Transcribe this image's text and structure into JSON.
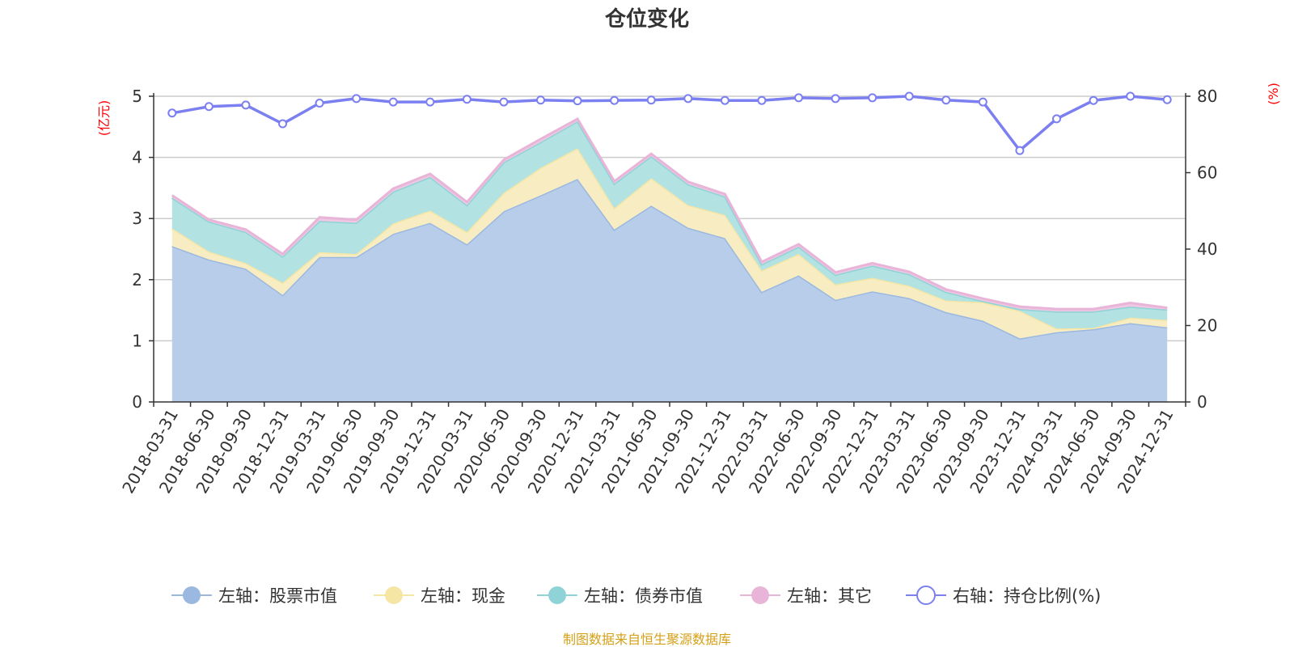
{
  "chart_data": {
    "type": "area",
    "title": "仓位变化",
    "left_axis_unit": "(亿元)",
    "right_axis_unit": "(%)",
    "left_ylim": [
      0,
      5
    ],
    "right_ylim": [
      0,
      80
    ],
    "left_ticks": [
      "0",
      "1",
      "2",
      "3",
      "4",
      "5"
    ],
    "right_ticks": [
      "0",
      "20",
      "40",
      "60",
      "80"
    ],
    "stacked": true,
    "grid": true,
    "legend_position": "bottom",
    "categories": [
      "2018-03-31",
      "2018-06-30",
      "2018-09-30",
      "2018-12-31",
      "2019-03-31",
      "2019-06-30",
      "2019-09-30",
      "2019-12-31",
      "2020-03-31",
      "2020-06-30",
      "2020-09-30",
      "2020-12-31",
      "2021-03-31",
      "2021-06-30",
      "2021-09-30",
      "2021-12-31",
      "2022-03-31",
      "2022-06-30",
      "2022-09-30",
      "2022-12-31",
      "2023-03-31",
      "2023-06-30",
      "2023-09-30",
      "2023-12-31",
      "2024-03-31",
      "2024-06-30",
      "2024-09-30",
      "2024-12-31"
    ],
    "series": [
      {
        "name": "左轴：股票市值",
        "axis": "left",
        "color": "#9bb8e0",
        "fill": "#b8cdea",
        "values": [
          2.55,
          2.33,
          2.18,
          1.75,
          2.37,
          2.37,
          2.75,
          2.93,
          2.58,
          3.12,
          3.38,
          3.65,
          2.82,
          3.21,
          2.85,
          2.68,
          1.8,
          2.07,
          1.67,
          1.81,
          1.7,
          1.47,
          1.33,
          1.04,
          1.14,
          1.19,
          1.29,
          1.22
        ]
      },
      {
        "name": "左轴：现金",
        "axis": "left",
        "color": "#f5e6a6",
        "fill": "#f8edc2",
        "values": [
          0.29,
          0.13,
          0.09,
          0.2,
          0.08,
          0.05,
          0.17,
          0.2,
          0.2,
          0.3,
          0.45,
          0.5,
          0.35,
          0.45,
          0.37,
          0.38,
          0.35,
          0.35,
          0.25,
          0.22,
          0.2,
          0.19,
          0.3,
          0.45,
          0.06,
          0.02,
          0.09,
          0.12
        ]
      },
      {
        "name": "左轴：债券市值",
        "axis": "left",
        "color": "#8fd3d6",
        "fill": "#b3e2e3",
        "values": [
          0.5,
          0.49,
          0.51,
          0.43,
          0.51,
          0.51,
          0.52,
          0.55,
          0.44,
          0.5,
          0.42,
          0.44,
          0.4,
          0.36,
          0.34,
          0.3,
          0.1,
          0.12,
          0.16,
          0.2,
          0.19,
          0.14,
          0.02,
          0.03,
          0.28,
          0.27,
          0.18,
          0.17
        ]
      },
      {
        "name": "左轴：其它",
        "axis": "left",
        "color": "#e8b4d8",
        "fill": "#efc8e3",
        "values": [
          0.04,
          0.03,
          0.04,
          0.04,
          0.06,
          0.05,
          0.05,
          0.05,
          0.05,
          0.04,
          0.05,
          0.04,
          0.04,
          0.04,
          0.04,
          0.04,
          0.04,
          0.04,
          0.04,
          0.04,
          0.04,
          0.04,
          0.04,
          0.04,
          0.04,
          0.04,
          0.06,
          0.03
        ]
      },
      {
        "name": "右轴：持仓比例(%)",
        "axis": "right",
        "color": "#7b7ff0",
        "type": "line",
        "values": [
          75.6,
          77.3,
          77.7,
          72.8,
          78.2,
          79.4,
          78.5,
          78.5,
          79.2,
          78.5,
          79.0,
          78.8,
          78.9,
          79.0,
          79.4,
          78.9,
          78.9,
          79.6,
          79.4,
          79.6,
          80.0,
          79.0,
          78.5,
          65.8,
          74.1,
          78.9,
          80.0,
          79.1
        ]
      }
    ],
    "source_note": "制图数据来自恒生聚源数据库"
  }
}
